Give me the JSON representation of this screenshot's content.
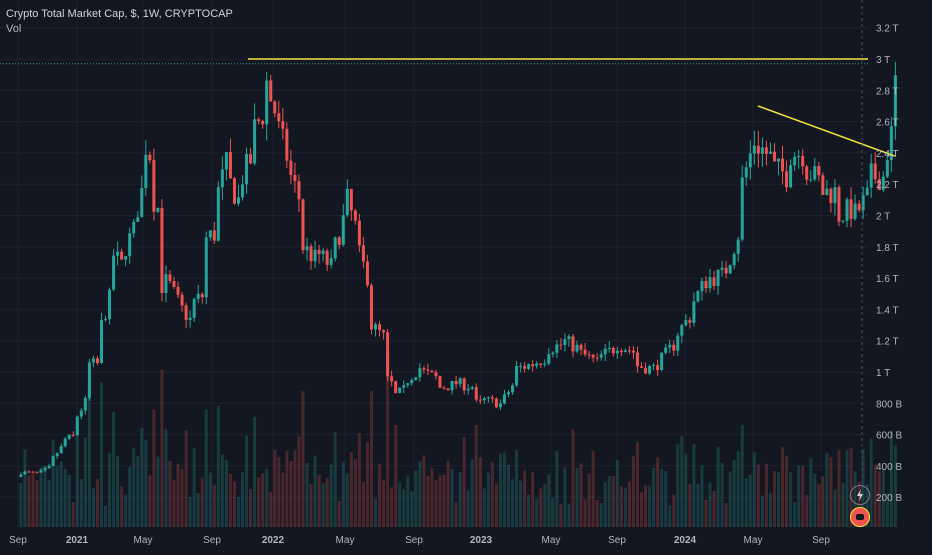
{
  "header": {
    "title": "Crypto Total Market Cap, $, 1W, CRYPTOCAP",
    "sub": "Vol"
  },
  "colors": {
    "background": "#131722",
    "up": "#26a69a",
    "down": "#ef5350",
    "annotation": "#f7e23e",
    "text": "#b2b5be",
    "grid": "#1e222d"
  },
  "icons": [
    "flash-icon",
    "logo-icon"
  ],
  "chart_data": {
    "type": "candlestick",
    "title": "Crypto Total Market Cap, $, 1W, CRYPTOCAP",
    "x_labels": [
      "Sep",
      "2021",
      "May",
      "Sep",
      "2022",
      "May",
      "Sep",
      "2023",
      "May",
      "Sep",
      "2024",
      "May",
      "Sep"
    ],
    "y_labels": [
      "200 B",
      "400 B",
      "600 B",
      "800 B",
      "1 T",
      "1.2 T",
      "1.4 T",
      "1.6 T",
      "1.8 T",
      "2 T",
      "2.2 T",
      "2.4 T",
      "2.6 T",
      "2.8 T",
      "3 T",
      "3.2 T"
    ],
    "y_unit": "USD trillions (label text shown in B / T)",
    "ylim": [
      0.1,
      3.3
    ],
    "grid": true,
    "series": [
      {
        "name": "price",
        "style": "candles",
        "points": [
          [
            "2020-09-06",
            0.33,
            0.36
          ],
          [
            "2020-10-11",
            0.35,
            0.36
          ],
          [
            "2020-11-01",
            0.4,
            0.45
          ],
          [
            "2020-11-22",
            0.55,
            0.57
          ],
          [
            "2020-12-13",
            0.6,
            0.72
          ],
          [
            "2021-01-03",
            0.85,
            1.05
          ],
          [
            "2021-01-24",
            1.05,
            1.3
          ],
          [
            "2021-02-14",
            1.55,
            1.75
          ],
          [
            "2021-03-07",
            1.65,
            1.8
          ],
          [
            "2021-03-28",
            1.95,
            2.05
          ],
          [
            "2021-04-11",
            2.25,
            2.45
          ],
          [
            "2021-04-25",
            2.35,
            2.1
          ],
          [
            "2021-05-09",
            2.0,
            1.55
          ],
          [
            "2021-05-23",
            1.6,
            1.55
          ],
          [
            "2021-06-13",
            1.4,
            1.4
          ],
          [
            "2021-07-04",
            1.3,
            1.45
          ],
          [
            "2021-07-25",
            1.5,
            1.85
          ],
          [
            "2021-08-15",
            1.9,
            2.15
          ],
          [
            "2021-09-05",
            2.4,
            2.2
          ],
          [
            "2021-09-26",
            2.05,
            2.25
          ],
          [
            "2021-10-17",
            2.4,
            2.55
          ],
          [
            "2021-11-07",
            2.7,
            2.85
          ],
          [
            "2021-11-14",
            2.85,
            2.75
          ],
          [
            "2021-11-28",
            2.6,
            2.55
          ],
          [
            "2021-12-19",
            2.3,
            2.25
          ],
          [
            "2022-01-09",
            2.05,
            1.8
          ],
          [
            "2022-02-06",
            1.7,
            1.75
          ],
          [
            "2022-03-06",
            1.65,
            1.8
          ],
          [
            "2022-03-27",
            2.05,
            2.1
          ],
          [
            "2022-04-17",
            1.85,
            1.75
          ],
          [
            "2022-05-08",
            1.55,
            1.3
          ],
          [
            "2022-06-05",
            1.2,
            0.95
          ],
          [
            "2022-06-19",
            0.9,
            0.85
          ],
          [
            "2022-07-10",
            0.9,
            0.95
          ],
          [
            "2022-08-07",
            1.05,
            1.0
          ],
          [
            "2022-09-04",
            0.95,
            0.9
          ],
          [
            "2022-10-02",
            0.92,
            0.93
          ],
          [
            "2022-11-06",
            0.9,
            0.8
          ],
          [
            "2022-11-20",
            0.8,
            0.82
          ],
          [
            "2022-12-18",
            0.8,
            0.79
          ],
          [
            "2023-01-15",
            0.95,
            1.02
          ],
          [
            "2023-02-12",
            1.05,
            1.05
          ],
          [
            "2023-03-12",
            1.1,
            1.15
          ],
          [
            "2023-04-09",
            1.18,
            1.2
          ],
          [
            "2023-05-07",
            1.14,
            1.12
          ],
          [
            "2023-06-11",
            1.05,
            1.1
          ],
          [
            "2023-07-09",
            1.16,
            1.18
          ],
          [
            "2023-08-13",
            1.12,
            1.04
          ],
          [
            "2023-09-10",
            1.02,
            1.02
          ],
          [
            "2023-10-22",
            1.2,
            1.25
          ],
          [
            "2023-11-19",
            1.38,
            1.45
          ],
          [
            "2023-12-17",
            1.62,
            1.6
          ],
          [
            "2024-01-14",
            1.62,
            1.65
          ],
          [
            "2024-02-11",
            1.95,
            2.2
          ],
          [
            "2024-03-10",
            2.55,
            2.45
          ],
          [
            "2024-04-07",
            2.35,
            2.3
          ],
          [
            "2024-05-05",
            2.25,
            2.4
          ],
          [
            "2024-06-02",
            2.4,
            2.3
          ],
          [
            "2024-06-30",
            2.2,
            2.15
          ],
          [
            "2024-07-28",
            2.15,
            2.0
          ],
          [
            "2024-08-25",
            2.05,
            2.0
          ],
          [
            "2024-09-22",
            2.15,
            2.25
          ],
          [
            "2024-10-20",
            2.25,
            2.4
          ],
          [
            "2024-11-03",
            2.6,
            2.85
          ],
          [
            "2024-11-10",
            2.9,
            2.95
          ]
        ]
      },
      {
        "name": "Vol",
        "style": "volume"
      }
    ],
    "annotations": [
      {
        "type": "horizontal line",
        "y": 3.0
      },
      {
        "type": "trend line",
        "from": [
          "2024-03-10",
          2.7
        ],
        "to": [
          "2024-11-03",
          2.38
        ]
      }
    ],
    "current_price_line": 2.97
  }
}
